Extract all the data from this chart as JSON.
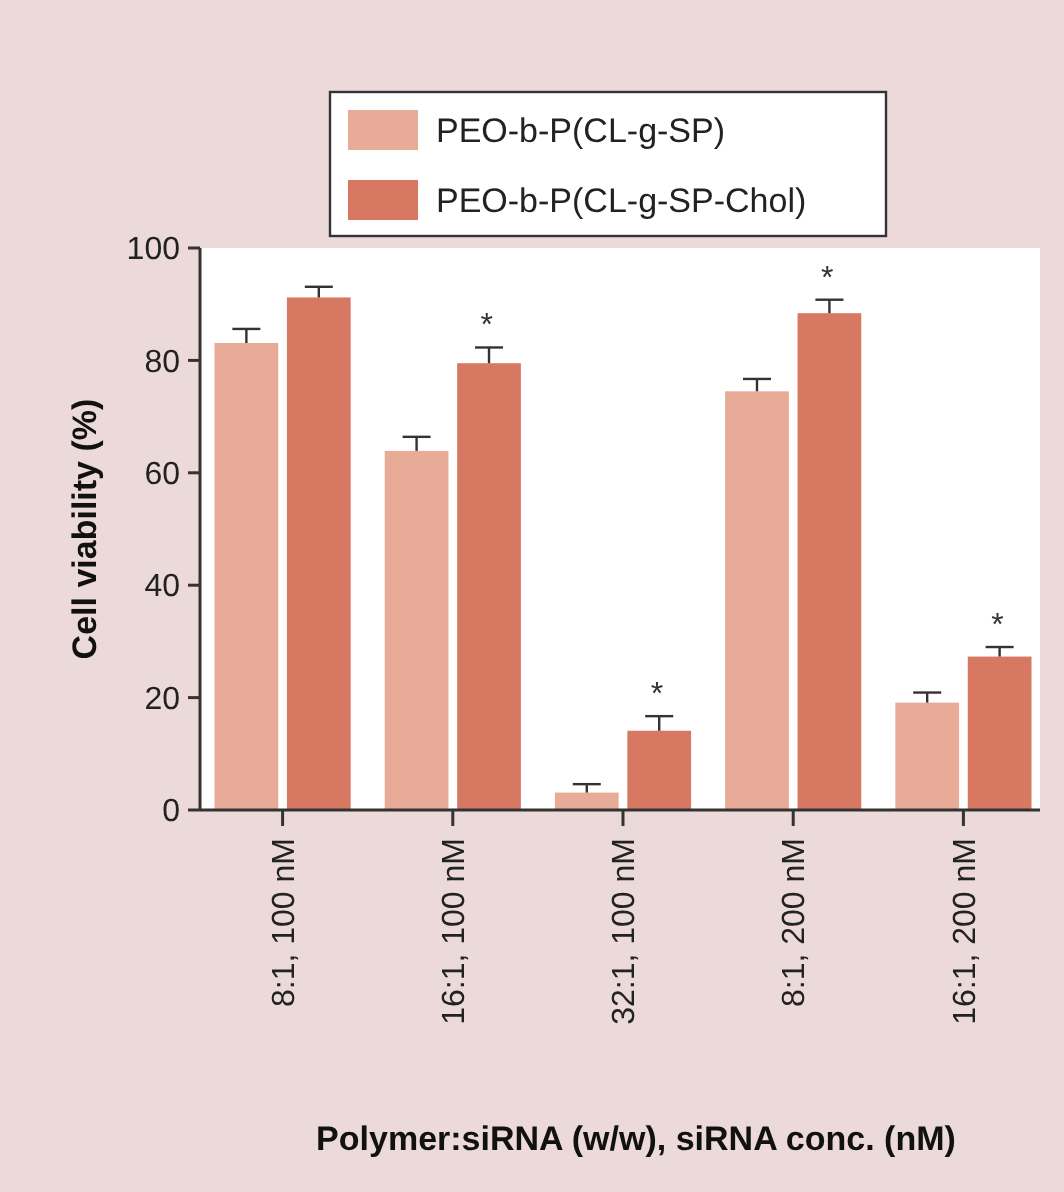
{
  "chart_data": {
    "type": "bar",
    "xlabel": "Polymer:siRNA (w/w), siRNA conc. (nM)",
    "ylabel": "Cell viability (%)",
    "categories": [
      "8:1, 100 nM",
      "16:1, 100 nM",
      "32:1, 100 nM",
      "8:1, 200 nM",
      "16:1, 200 nM"
    ],
    "series": [
      {
        "name": "PEO-b-P(CL-g-SP)",
        "color": "#e8ab98",
        "values": [
          83.1,
          63.9,
          3.1,
          74.5,
          19.1
        ],
        "errors": [
          2.5,
          2.5,
          1.5,
          2.2,
          1.8
        ]
      },
      {
        "name": "PEO-b-P(CL-g-SP-Chol)",
        "color": "#d77862",
        "values": [
          91.2,
          79.5,
          14.1,
          88.4,
          27.3
        ],
        "errors": [
          1.9,
          2.8,
          2.6,
          2.4,
          1.7
        ]
      }
    ],
    "ylim": [
      0,
      100
    ],
    "yticks": [
      0,
      20,
      40,
      60,
      80,
      100
    ],
    "grid": false,
    "legend": "top",
    "annotations": [
      {
        "text": "*",
        "x": "16:1, 100 nM",
        "y": 79.5
      },
      {
        "text": "*",
        "x": "32:1, 100 nM",
        "y": 14.1
      },
      {
        "text": "*",
        "x": "8:1, 200 nM",
        "y": 88.4
      },
      {
        "text": "*",
        "x": "16:1, 200 nM",
        "y": 27.3
      }
    ]
  }
}
